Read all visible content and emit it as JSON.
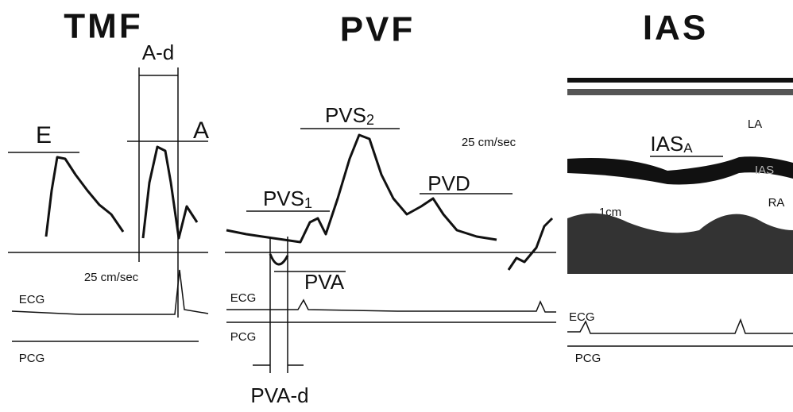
{
  "panels": [
    {
      "title": "TMF",
      "labels": [
        "A-d",
        "E",
        "A",
        "25 cm/sec",
        "ECG",
        "PCG"
      ]
    },
    {
      "title": "PVF",
      "pvs2": {
        "text": "PVS",
        "sub": "2"
      },
      "pvs1": {
        "text": "PVS",
        "sub": "1"
      },
      "labels": [
        "25 cm/sec",
        "PVD",
        "PVA",
        "ECG",
        "PCG",
        "PVA-d"
      ]
    },
    {
      "title": "IAS",
      "iasa": {
        "text": "IAS",
        "sub": "A"
      },
      "labels": [
        "LA",
        "IAS",
        "RA",
        "1cm",
        "ECG",
        "PCG"
      ]
    }
  ]
}
